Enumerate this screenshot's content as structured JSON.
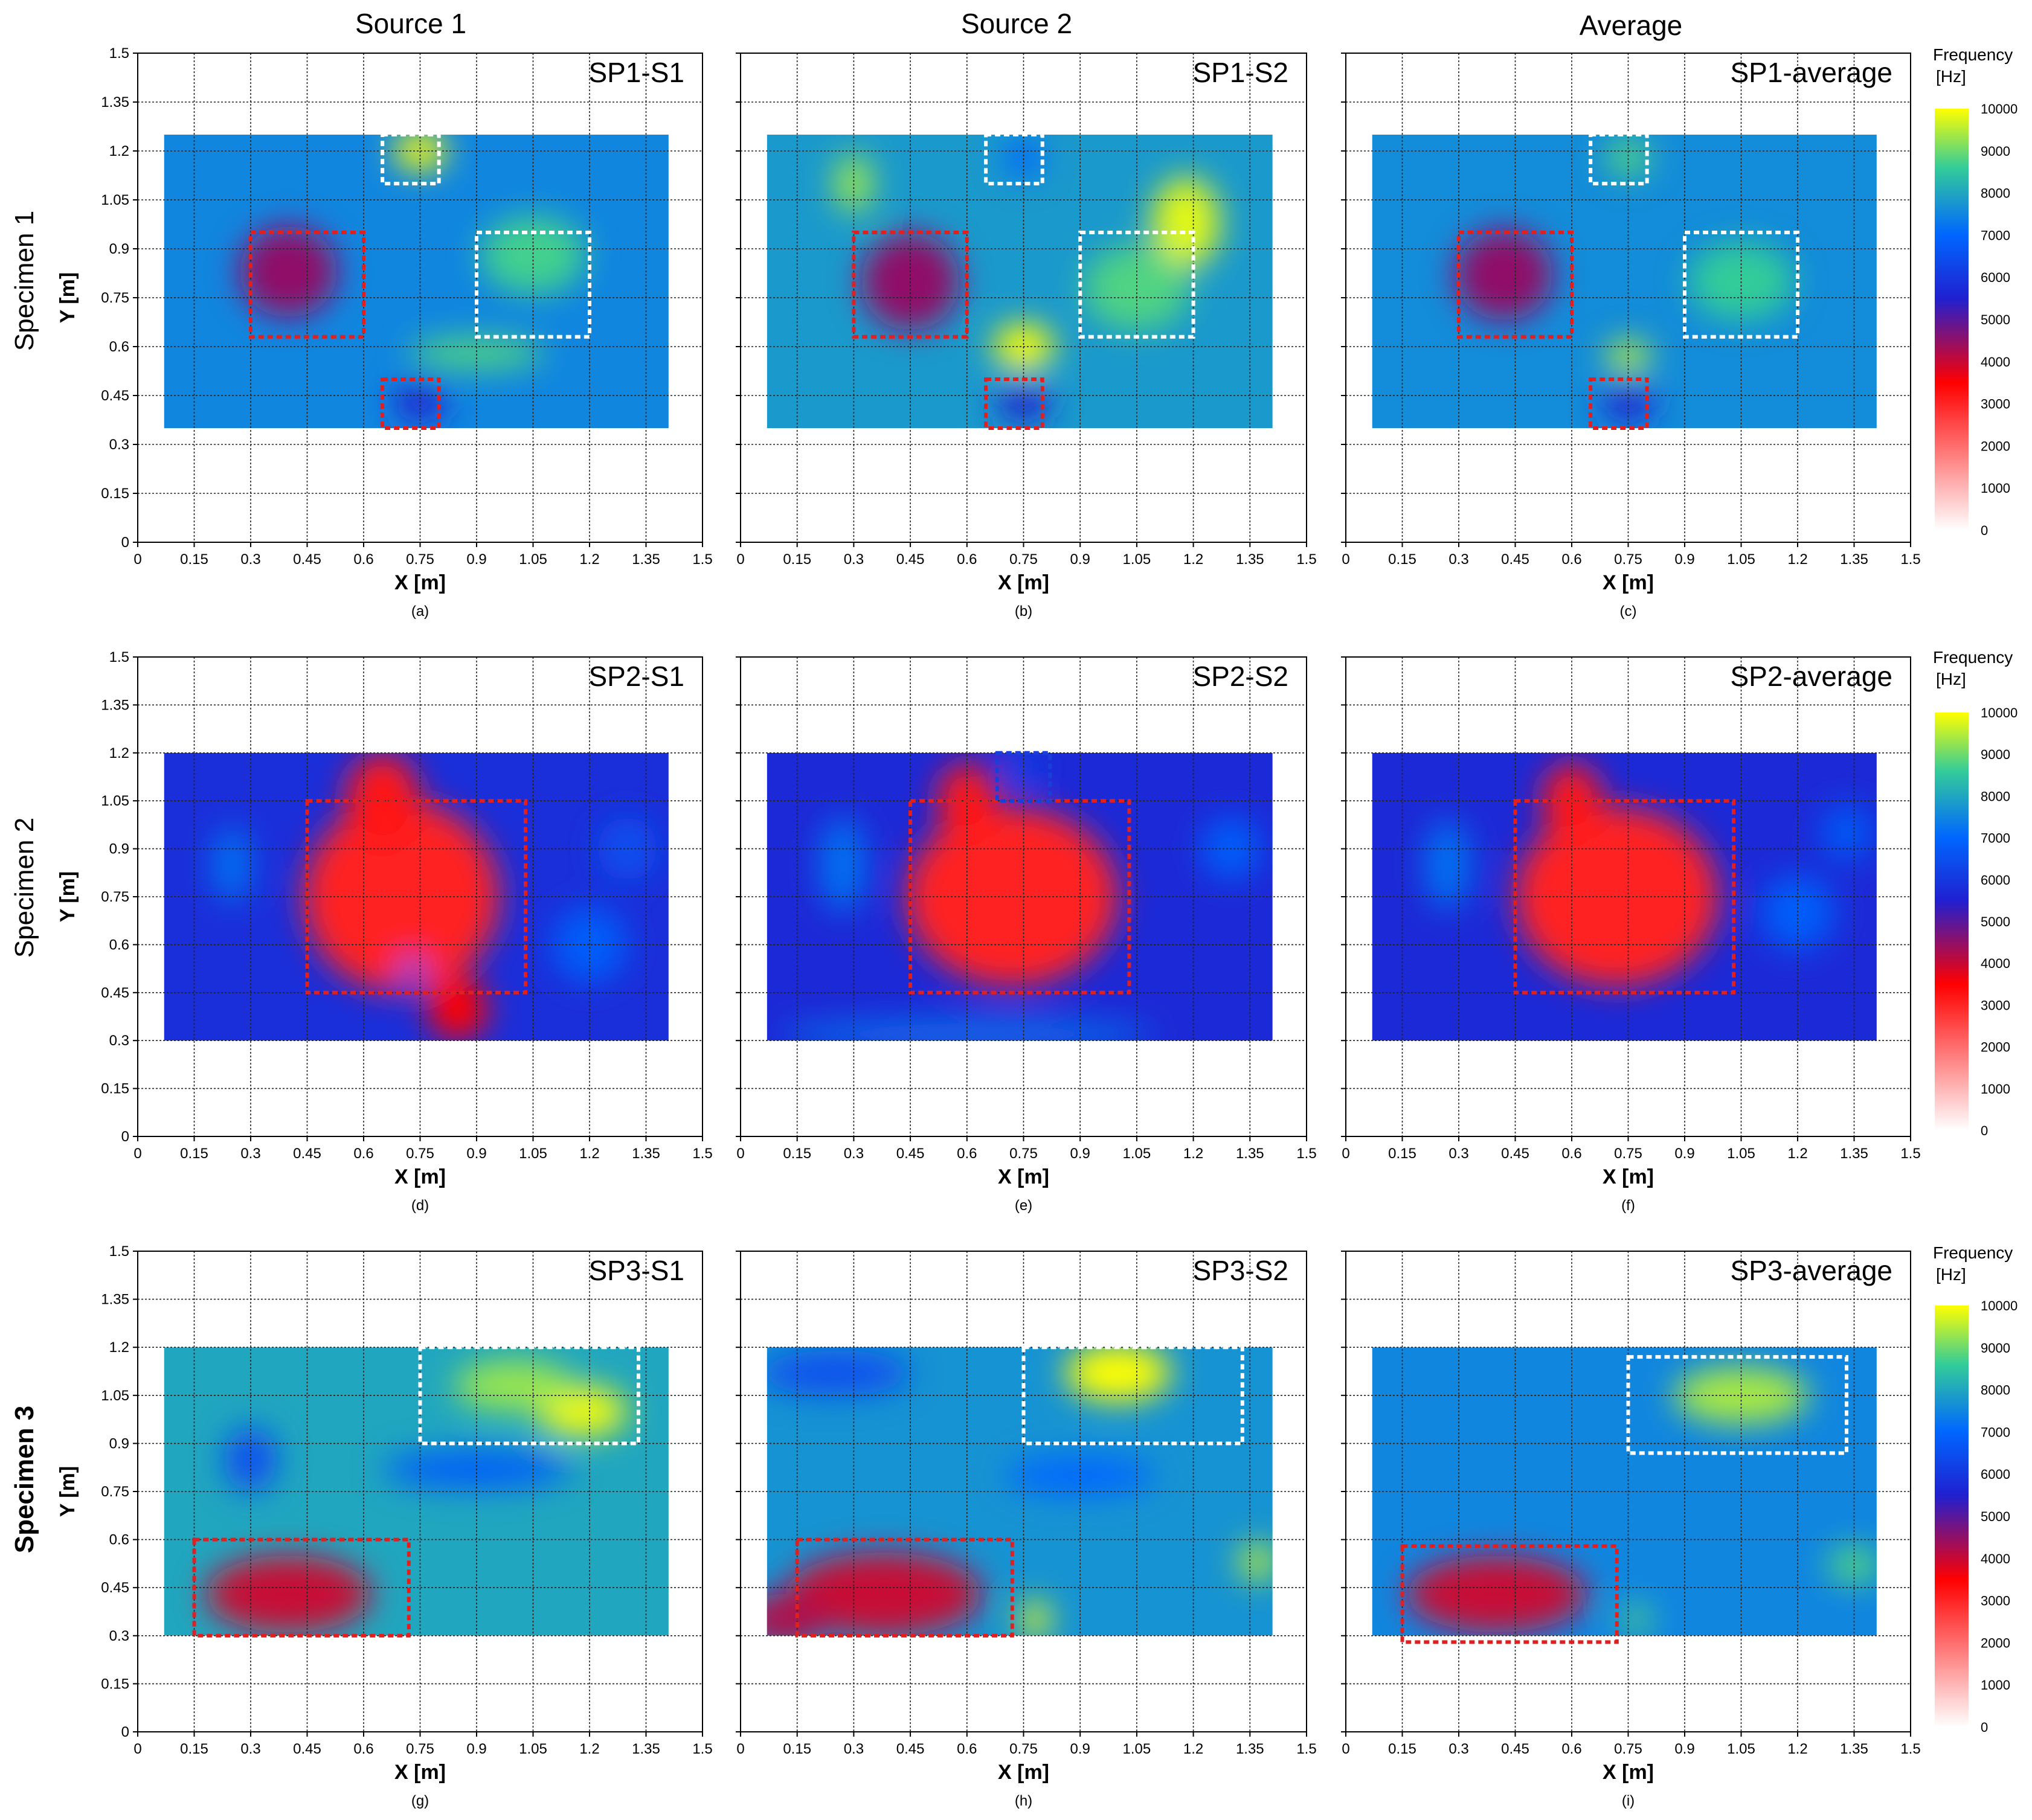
{
  "column_titles": [
    "Source 1",
    "Source 2",
    "Average"
  ],
  "row_titles": [
    "Specimen 1",
    "Specimen 2",
    "Specimen 3"
  ],
  "colorbar": {
    "title": "Frequency",
    "unit": "[Hz]",
    "ticks": [
      "10000",
      "9000",
      "8000",
      "7000",
      "6000",
      "5000",
      "4000",
      "3000",
      "2000",
      "1000",
      "0"
    ],
    "min": 0,
    "max": 10000,
    "stops": [
      "#ffffff",
      "#ff0000",
      "#2020d0",
      "#0066ff",
      "#33cc99",
      "#ffff00"
    ]
  },
  "chart_data": [
    {
      "type": "heatmap",
      "subfig": "(a)",
      "label": "SP1-S1",
      "xlabel": "X [m]",
      "ylabel": "Y [m]",
      "xlim": [
        0,
        1.5
      ],
      "ylim": [
        0,
        1.5
      ],
      "x_ticks": [
        "0",
        "0.15",
        "0.3",
        "0.45",
        "0.6",
        "0.75",
        "0.9",
        "1.05",
        "1.2",
        "1.35",
        "1.5"
      ],
      "y_ticks": [
        "0",
        "0.15",
        "0.3",
        "0.45",
        "0.6",
        "0.75",
        "0.9",
        "1.05",
        "1.2",
        "1.35",
        "1.5"
      ],
      "grid": true,
      "data_extent": {
        "x": [
          0.07,
          1.41
        ],
        "y": [
          0.35,
          1.25
        ]
      },
      "background_hz": 7500,
      "features": [
        {
          "x": 0.4,
          "y": 0.83,
          "rx": 0.13,
          "ry": 0.14,
          "hz": 4500
        },
        {
          "x": 0.75,
          "y": 1.2,
          "rx": 0.07,
          "ry": 0.06,
          "hz": 10000
        },
        {
          "x": 0.75,
          "y": 0.43,
          "rx": 0.07,
          "ry": 0.06,
          "hz": 5500
        },
        {
          "x": 1.05,
          "y": 0.88,
          "rx": 0.14,
          "ry": 0.12,
          "hz": 8700
        },
        {
          "x": 0.9,
          "y": 0.58,
          "rx": 0.18,
          "ry": 0.05,
          "hz": 8800
        }
      ],
      "rectangles": [
        {
          "x0": 0.3,
          "x1": 0.6,
          "y0": 0.63,
          "y1": 0.95,
          "color": "red"
        },
        {
          "x0": 0.65,
          "x1": 0.8,
          "y0": 1.1,
          "y1": 1.25,
          "color": "white"
        },
        {
          "x0": 0.9,
          "x1": 1.2,
          "y0": 0.63,
          "y1": 0.95,
          "color": "white"
        },
        {
          "x0": 0.65,
          "x1": 0.8,
          "y0": 0.35,
          "y1": 0.5,
          "color": "red"
        }
      ]
    },
    {
      "type": "heatmap",
      "subfig": "(b)",
      "label": "SP1-S2",
      "xlabel": "X [m]",
      "ylabel": "",
      "xlim": [
        0,
        1.5
      ],
      "ylim": [
        0,
        1.5
      ],
      "x_ticks": [
        "0",
        "0.15",
        "0.3",
        "0.45",
        "0.6",
        "0.75",
        "0.9",
        "1.05",
        "1.2",
        "1.35",
        "1.5"
      ],
      "y_ticks": [],
      "grid": true,
      "data_extent": {
        "x": [
          0.07,
          1.41
        ],
        "y": [
          0.35,
          1.25
        ]
      },
      "background_hz": 7800,
      "features": [
        {
          "x": 0.45,
          "y": 0.8,
          "rx": 0.13,
          "ry": 0.15,
          "hz": 4500
        },
        {
          "x": 0.75,
          "y": 0.6,
          "rx": 0.08,
          "ry": 0.07,
          "hz": 10000
        },
        {
          "x": 0.75,
          "y": 0.43,
          "rx": 0.07,
          "ry": 0.06,
          "hz": 5500
        },
        {
          "x": 1.18,
          "y": 0.98,
          "rx": 0.09,
          "ry": 0.14,
          "hz": 9800
        },
        {
          "x": 0.3,
          "y": 1.1,
          "rx": 0.05,
          "ry": 0.09,
          "hz": 9300
        },
        {
          "x": 1.05,
          "y": 0.78,
          "rx": 0.14,
          "ry": 0.13,
          "hz": 8800
        },
        {
          "x": 0.75,
          "y": 1.18,
          "rx": 0.05,
          "ry": 0.06,
          "hz": 7000
        }
      ],
      "rectangles": [
        {
          "x0": 0.3,
          "x1": 0.6,
          "y0": 0.63,
          "y1": 0.95,
          "color": "red"
        },
        {
          "x0": 0.65,
          "x1": 0.8,
          "y0": 1.1,
          "y1": 1.25,
          "color": "white"
        },
        {
          "x0": 0.9,
          "x1": 1.2,
          "y0": 0.63,
          "y1": 0.95,
          "color": "white"
        },
        {
          "x0": 0.65,
          "x1": 0.8,
          "y0": 0.35,
          "y1": 0.5,
          "color": "red"
        }
      ]
    },
    {
      "type": "heatmap",
      "subfig": "(c)",
      "label": "SP1-average",
      "xlabel": "X [m]",
      "ylabel": "",
      "xlim": [
        0,
        1.5
      ],
      "ylim": [
        0,
        1.5
      ],
      "x_ticks": [
        "0",
        "0.15",
        "0.3",
        "0.45",
        "0.6",
        "0.75",
        "0.9",
        "1.05",
        "1.2",
        "1.35",
        "1.5"
      ],
      "y_ticks": [],
      "grid": true,
      "data_extent": {
        "x": [
          0.07,
          1.41
        ],
        "y": [
          0.35,
          1.25
        ]
      },
      "background_hz": 7600,
      "features": [
        {
          "x": 0.42,
          "y": 0.82,
          "rx": 0.13,
          "ry": 0.14,
          "hz": 4500
        },
        {
          "x": 0.75,
          "y": 1.18,
          "rx": 0.06,
          "ry": 0.06,
          "hz": 8800
        },
        {
          "x": 0.75,
          "y": 0.57,
          "rx": 0.06,
          "ry": 0.05,
          "hz": 9500
        },
        {
          "x": 0.75,
          "y": 0.43,
          "rx": 0.07,
          "ry": 0.06,
          "hz": 5500
        },
        {
          "x": 1.05,
          "y": 0.8,
          "rx": 0.14,
          "ry": 0.12,
          "hz": 8600
        }
      ],
      "rectangles": [
        {
          "x0": 0.3,
          "x1": 0.6,
          "y0": 0.63,
          "y1": 0.95,
          "color": "red"
        },
        {
          "x0": 0.65,
          "x1": 0.8,
          "y0": 1.1,
          "y1": 1.25,
          "color": "white"
        },
        {
          "x0": 0.9,
          "x1": 1.2,
          "y0": 0.63,
          "y1": 0.95,
          "color": "white"
        },
        {
          "x0": 0.65,
          "x1": 0.8,
          "y0": 0.35,
          "y1": 0.5,
          "color": "red"
        }
      ]
    },
    {
      "type": "heatmap",
      "subfig": "(d)",
      "label": "SP2-S1",
      "xlabel": "X [m]",
      "ylabel": "Y [m]",
      "xlim": [
        0,
        1.5
      ],
      "ylim": [
        0,
        1.5
      ],
      "x_ticks": [
        "0",
        "0.15",
        "0.3",
        "0.45",
        "0.6",
        "0.75",
        "0.9",
        "1.05",
        "1.2",
        "1.35",
        "1.5"
      ],
      "y_ticks": [
        "0",
        "0.15",
        "0.3",
        "0.45",
        "0.6",
        "0.75",
        "0.9",
        "1.05",
        "1.2",
        "1.35",
        "1.5"
      ],
      "grid": true,
      "data_extent": {
        "x": [
          0.07,
          1.41
        ],
        "y": [
          0.3,
          1.2
        ]
      },
      "background_hz": 5800,
      "features": [
        {
          "x": 0.7,
          "y": 0.75,
          "rx": 0.26,
          "ry": 0.3,
          "hz": 3000
        },
        {
          "x": 0.65,
          "y": 1.05,
          "rx": 0.1,
          "ry": 0.15,
          "hz": 3200
        },
        {
          "x": 0.85,
          "y": 0.4,
          "rx": 0.08,
          "ry": 0.1,
          "hz": 3500
        },
        {
          "x": 0.25,
          "y": 0.85,
          "rx": 0.05,
          "ry": 0.12,
          "hz": 7200
        },
        {
          "x": 1.2,
          "y": 0.6,
          "rx": 0.1,
          "ry": 0.12,
          "hz": 6800
        },
        {
          "x": 1.3,
          "y": 0.9,
          "rx": 0.08,
          "ry": 0.1,
          "hz": 6500
        },
        {
          "x": 0.73,
          "y": 0.52,
          "rx": 0.04,
          "ry": 0.04,
          "hz": 6500
        }
      ],
      "rectangles": [
        {
          "x0": 0.45,
          "x1": 1.03,
          "y0": 0.45,
          "y1": 1.05,
          "color": "red"
        }
      ]
    },
    {
      "type": "heatmap",
      "subfig": "(e)",
      "label": "SP2-S2",
      "xlabel": "X [m]",
      "ylabel": "",
      "xlim": [
        0,
        1.5
      ],
      "ylim": [
        0,
        1.5
      ],
      "x_ticks": [
        "0",
        "0.15",
        "0.3",
        "0.45",
        "0.6",
        "0.75",
        "0.9",
        "1.05",
        "1.2",
        "1.35",
        "1.5"
      ],
      "y_ticks": [],
      "grid": true,
      "data_extent": {
        "x": [
          0.07,
          1.41
        ],
        "y": [
          0.3,
          1.2
        ]
      },
      "background_hz": 5700,
      "features": [
        {
          "x": 0.72,
          "y": 0.75,
          "rx": 0.28,
          "ry": 0.28,
          "hz": 3000
        },
        {
          "x": 0.6,
          "y": 1.05,
          "rx": 0.08,
          "ry": 0.12,
          "hz": 3200
        },
        {
          "x": 0.27,
          "y": 0.85,
          "rx": 0.06,
          "ry": 0.15,
          "hz": 7200
        },
        {
          "x": 0.6,
          "y": 0.32,
          "rx": 0.5,
          "ry": 0.04,
          "hz": 7300
        },
        {
          "x": 1.3,
          "y": 0.9,
          "rx": 0.08,
          "ry": 0.1,
          "hz": 6800
        },
        {
          "x": 0.75,
          "y": 1.15,
          "rx": 0.04,
          "ry": 0.04,
          "hz": 6500
        }
      ],
      "rectangles": [
        {
          "x0": 0.45,
          "x1": 1.03,
          "y0": 0.45,
          "y1": 1.05,
          "color": "red"
        },
        {
          "x0": 0.68,
          "x1": 0.82,
          "y0": 1.05,
          "y1": 1.2,
          "color": "blue"
        }
      ]
    },
    {
      "type": "heatmap",
      "subfig": "(f)",
      "label": "SP2-average",
      "xlabel": "X [m]",
      "ylabel": "",
      "xlim": [
        0,
        1.5
      ],
      "ylim": [
        0,
        1.5
      ],
      "x_ticks": [
        "0",
        "0.15",
        "0.3",
        "0.45",
        "0.6",
        "0.75",
        "0.9",
        "1.05",
        "1.2",
        "1.35",
        "1.5"
      ],
      "y_ticks": [],
      "grid": true,
      "data_extent": {
        "x": [
          0.07,
          1.41
        ],
        "y": [
          0.3,
          1.2
        ]
      },
      "background_hz": 5700,
      "features": [
        {
          "x": 0.72,
          "y": 0.75,
          "rx": 0.27,
          "ry": 0.28,
          "hz": 3000
        },
        {
          "x": 0.6,
          "y": 1.05,
          "rx": 0.08,
          "ry": 0.12,
          "hz": 3200
        },
        {
          "x": 0.27,
          "y": 0.85,
          "rx": 0.06,
          "ry": 0.14,
          "hz": 7200
        },
        {
          "x": 1.2,
          "y": 0.7,
          "rx": 0.1,
          "ry": 0.12,
          "hz": 6800
        },
        {
          "x": 1.33,
          "y": 0.95,
          "rx": 0.07,
          "ry": 0.09,
          "hz": 6700
        }
      ],
      "rectangles": [
        {
          "x0": 0.45,
          "x1": 1.03,
          "y0": 0.45,
          "y1": 1.05,
          "color": "red"
        }
      ]
    },
    {
      "type": "heatmap",
      "subfig": "(g)",
      "label": "SP3-S1",
      "xlabel": "X [m]",
      "ylabel": "Y [m]",
      "xlim": [
        0,
        1.5
      ],
      "ylim": [
        0,
        1.5
      ],
      "x_ticks": [
        "0",
        "0.15",
        "0.3",
        "0.45",
        "0.6",
        "0.75",
        "0.9",
        "1.05",
        "1.2",
        "1.35",
        "1.5"
      ],
      "y_ticks": [
        "0",
        "0.15",
        "0.3",
        "0.45",
        "0.6",
        "0.75",
        "0.9",
        "1.05",
        "1.2",
        "1.35",
        "1.5"
      ],
      "grid": true,
      "data_extent": {
        "x": [
          0.07,
          1.41
        ],
        "y": [
          0.3,
          1.2
        ]
      },
      "background_hz": 8000,
      "features": [
        {
          "x": 0.4,
          "y": 0.43,
          "rx": 0.22,
          "ry": 0.12,
          "hz": 4000
        },
        {
          "x": 1.18,
          "y": 1.0,
          "rx": 0.12,
          "ry": 0.08,
          "hz": 9900
        },
        {
          "x": 1.0,
          "y": 1.08,
          "rx": 0.16,
          "ry": 0.08,
          "hz": 9300
        },
        {
          "x": 0.3,
          "y": 0.85,
          "rx": 0.07,
          "ry": 0.1,
          "hz": 6500
        },
        {
          "x": 0.9,
          "y": 0.82,
          "rx": 0.25,
          "ry": 0.06,
          "hz": 6800
        }
      ],
      "rectangles": [
        {
          "x0": 0.15,
          "x1": 0.72,
          "y0": 0.3,
          "y1": 0.6,
          "color": "red"
        },
        {
          "x0": 0.75,
          "x1": 1.33,
          "y0": 0.9,
          "y1": 1.2,
          "color": "white"
        }
      ]
    },
    {
      "type": "heatmap",
      "subfig": "(h)",
      "label": "SP3-S2",
      "xlabel": "X [m]",
      "ylabel": "",
      "xlim": [
        0,
        1.5
      ],
      "ylim": [
        0,
        1.5
      ],
      "x_ticks": [
        "0",
        "0.15",
        "0.3",
        "0.45",
        "0.6",
        "0.75",
        "0.9",
        "1.05",
        "1.2",
        "1.35",
        "1.5"
      ],
      "y_ticks": [],
      "grid": true,
      "data_extent": {
        "x": [
          0.07,
          1.41
        ],
        "y": [
          0.3,
          1.2
        ]
      },
      "background_hz": 7700,
      "features": [
        {
          "x": 0.38,
          "y": 0.43,
          "rx": 0.26,
          "ry": 0.13,
          "hz": 4000
        },
        {
          "x": 0.12,
          "y": 0.35,
          "rx": 0.12,
          "ry": 0.08,
          "hz": 4200
        },
        {
          "x": 1.0,
          "y": 1.12,
          "rx": 0.14,
          "ry": 0.09,
          "hz": 10000
        },
        {
          "x": 0.78,
          "y": 0.35,
          "rx": 0.04,
          "ry": 0.06,
          "hz": 9800
        },
        {
          "x": 1.37,
          "y": 0.53,
          "rx": 0.05,
          "ry": 0.06,
          "hz": 9500
        },
        {
          "x": 0.25,
          "y": 1.12,
          "rx": 0.2,
          "ry": 0.07,
          "hz": 6500
        },
        {
          "x": 0.9,
          "y": 0.8,
          "rx": 0.2,
          "ry": 0.06,
          "hz": 7000
        }
      ],
      "rectangles": [
        {
          "x0": 0.15,
          "x1": 0.72,
          "y0": 0.3,
          "y1": 0.6,
          "color": "red"
        },
        {
          "x0": 0.75,
          "x1": 1.33,
          "y0": 0.9,
          "y1": 1.2,
          "color": "white"
        }
      ]
    },
    {
      "type": "heatmap",
      "subfig": "(i)",
      "label": "SP3-average",
      "xlabel": "X [m]",
      "ylabel": "",
      "xlim": [
        0,
        1.5
      ],
      "ylim": [
        0,
        1.5
      ],
      "x_ticks": [
        "0",
        "0.15",
        "0.3",
        "0.45",
        "0.6",
        "0.75",
        "0.9",
        "1.05",
        "1.2",
        "1.35",
        "1.5"
      ],
      "y_ticks": [],
      "grid": true,
      "data_extent": {
        "x": [
          0.07,
          1.41
        ],
        "y": [
          0.3,
          1.2
        ]
      },
      "background_hz": 7500,
      "features": [
        {
          "x": 0.4,
          "y": 0.43,
          "rx": 0.24,
          "ry": 0.12,
          "hz": 4000
        },
        {
          "x": 1.05,
          "y": 1.05,
          "rx": 0.18,
          "ry": 0.09,
          "hz": 9400
        },
        {
          "x": 1.35,
          "y": 0.52,
          "rx": 0.07,
          "ry": 0.06,
          "hz": 8800
        },
        {
          "x": 0.77,
          "y": 0.35,
          "rx": 0.04,
          "ry": 0.05,
          "hz": 8800
        }
      ],
      "rectangles": [
        {
          "x0": 0.15,
          "x1": 0.72,
          "y0": 0.28,
          "y1": 0.58,
          "color": "red"
        },
        {
          "x0": 0.75,
          "x1": 1.33,
          "y0": 0.87,
          "y1": 1.17,
          "color": "white"
        }
      ]
    }
  ]
}
